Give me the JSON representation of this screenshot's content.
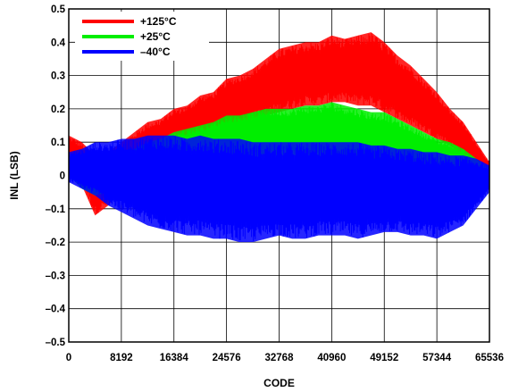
{
  "chart_data": {
    "type": "line",
    "title": "",
    "xlabel": "CODE",
    "ylabel": "INL (LSB)",
    "xlim": [
      0,
      65536
    ],
    "ylim": [
      -0.5,
      0.5
    ],
    "x_ticks": [
      0,
      8192,
      16384,
      24576,
      32768,
      40960,
      49152,
      57344,
      65536
    ],
    "x_tick_labels": [
      "0",
      "8192",
      "16384",
      "24576",
      "32768",
      "40960",
      "49152",
      "57344",
      "65536"
    ],
    "y_ticks": [
      -0.5,
      -0.4,
      -0.3,
      -0.2,
      -0.1,
      0,
      0.1,
      0.2,
      0.3,
      0.4,
      0.5
    ],
    "y_tick_labels": [
      "–0.5",
      "–0.4",
      "–0.3",
      "–0.2",
      "–0.1",
      "0",
      "0.1",
      "0.2",
      "0.3",
      "0.4",
      "0.5"
    ],
    "grid": true,
    "legend_position": "top-left",
    "series": [
      {
        "name": "+125°C",
        "color": "#ff0000",
        "x": [
          0,
          2048,
          4096,
          6144,
          8192,
          10240,
          12288,
          14336,
          16384,
          18432,
          20480,
          22528,
          24576,
          26624,
          28672,
          30720,
          32768,
          34816,
          36864,
          38912,
          40960,
          43008,
          45056,
          47104,
          49152,
          51200,
          53248,
          55296,
          57344,
          59392,
          61440,
          63488,
          65536
        ],
        "high": [
          0.12,
          0.1,
          0.06,
          0.07,
          0.1,
          0.13,
          0.16,
          0.17,
          0.2,
          0.21,
          0.24,
          0.25,
          0.29,
          0.3,
          0.32,
          0.35,
          0.38,
          0.39,
          0.4,
          0.4,
          0.42,
          0.41,
          0.42,
          0.43,
          0.4,
          0.36,
          0.33,
          0.29,
          0.25,
          0.2,
          0.16,
          0.1,
          0.04
        ],
        "low": [
          0.02,
          -0.03,
          -0.12,
          -0.09,
          -0.04,
          0.0,
          0.02,
          0.04,
          0.07,
          0.08,
          0.1,
          0.12,
          0.14,
          0.16,
          0.17,
          0.18,
          0.19,
          0.2,
          0.21,
          0.21,
          0.22,
          0.22,
          0.21,
          0.21,
          0.19,
          0.17,
          0.15,
          0.13,
          0.11,
          0.09,
          0.06,
          0.03,
          0.0
        ]
      },
      {
        "name": "+25°C",
        "color": "#00ee00",
        "x": [
          0,
          2048,
          4096,
          6144,
          8192,
          10240,
          12288,
          14336,
          16384,
          18432,
          20480,
          22528,
          24576,
          26624,
          28672,
          30720,
          32768,
          34816,
          36864,
          38912,
          40960,
          43008,
          45056,
          47104,
          49152,
          51200,
          53248,
          55296,
          57344,
          59392,
          61440,
          63488,
          65536
        ],
        "high": [
          0.06,
          0.04,
          0.03,
          0.04,
          0.06,
          0.08,
          0.1,
          0.11,
          0.13,
          0.14,
          0.15,
          0.16,
          0.18,
          0.18,
          0.19,
          0.2,
          0.2,
          0.2,
          0.21,
          0.21,
          0.22,
          0.21,
          0.2,
          0.19,
          0.19,
          0.17,
          0.15,
          0.13,
          0.11,
          0.1,
          0.08,
          0.05,
          0.02
        ],
        "low": [
          0.0,
          -0.04,
          -0.06,
          -0.05,
          -0.03,
          -0.02,
          0.0,
          0.01,
          0.02,
          0.02,
          0.03,
          0.04,
          0.05,
          0.05,
          0.05,
          0.06,
          0.06,
          0.06,
          0.05,
          0.05,
          0.05,
          0.04,
          0.04,
          0.03,
          0.03,
          0.02,
          0.01,
          0.01,
          0.0,
          0.0,
          -0.01,
          -0.01,
          -0.02
        ]
      },
      {
        "name": "–40°C",
        "color": "#0000ff",
        "x": [
          0,
          2048,
          4096,
          6144,
          8192,
          10240,
          12288,
          14336,
          16384,
          18432,
          20480,
          22528,
          24576,
          26624,
          28672,
          30720,
          32768,
          34816,
          36864,
          38912,
          40960,
          43008,
          45056,
          47104,
          49152,
          51200,
          53248,
          55296,
          57344,
          59392,
          61440,
          63488,
          65536
        ],
        "high": [
          0.07,
          0.08,
          0.1,
          0.1,
          0.11,
          0.11,
          0.12,
          0.12,
          0.12,
          0.11,
          0.12,
          0.11,
          0.11,
          0.11,
          0.1,
          0.1,
          0.1,
          0.1,
          0.1,
          0.1,
          0.1,
          0.1,
          0.1,
          0.09,
          0.09,
          0.08,
          0.08,
          0.07,
          0.07,
          0.06,
          0.06,
          0.05,
          0.03
        ],
        "low": [
          -0.02,
          -0.04,
          -0.06,
          -0.09,
          -0.11,
          -0.13,
          -0.15,
          -0.16,
          -0.17,
          -0.18,
          -0.18,
          -0.19,
          -0.19,
          -0.2,
          -0.2,
          -0.19,
          -0.18,
          -0.19,
          -0.19,
          -0.18,
          -0.18,
          -0.18,
          -0.19,
          -0.18,
          -0.17,
          -0.17,
          -0.18,
          -0.18,
          -0.19,
          -0.17,
          -0.15,
          -0.1,
          -0.05
        ]
      }
    ]
  }
}
